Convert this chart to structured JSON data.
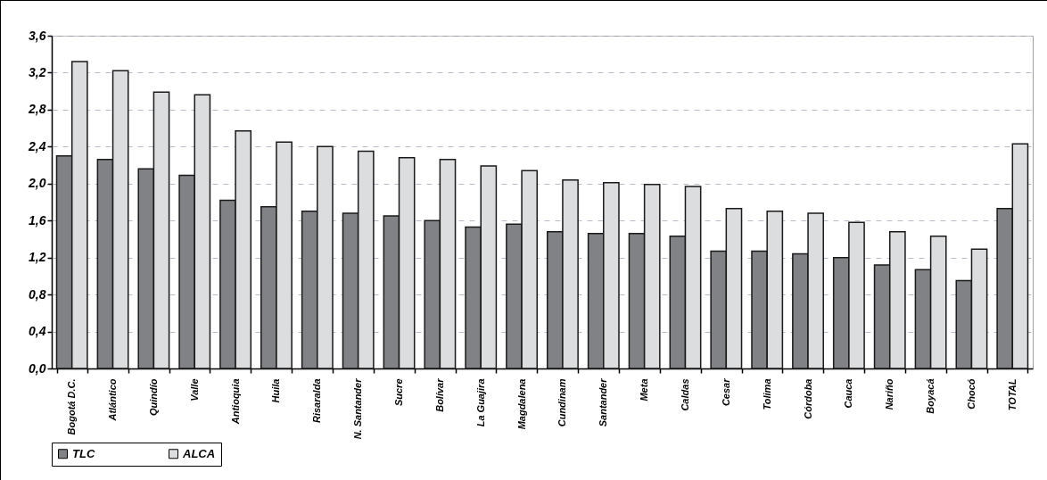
{
  "chart_data": {
    "type": "bar",
    "categories": [
      "Bogotá D.C.",
      "Atlántico",
      "Quindío",
      "Valle",
      "Antioquia",
      "Huila",
      "Risaralda",
      "N. Santander",
      "Sucre",
      "Bolívar",
      "La Guajira",
      "Magdalena",
      "Cundinam",
      "Santander",
      "Meta",
      "Caldas",
      "Cesar",
      "Tolima",
      "Córdoba",
      "Cauca",
      "Nariño",
      "Boyacá",
      "Chocó",
      "TOTAL"
    ],
    "series": [
      {
        "name": "TLC",
        "color": "#808285",
        "values": [
          2.3,
          2.26,
          2.16,
          2.09,
          1.82,
          1.75,
          1.7,
          1.68,
          1.65,
          1.6,
          1.53,
          1.56,
          1.48,
          1.46,
          1.46,
          1.43,
          1.27,
          1.27,
          1.24,
          1.2,
          1.12,
          1.07,
          0.95,
          1.73
        ]
      },
      {
        "name": "ALCA",
        "color": "#dcdddf",
        "values": [
          3.32,
          3.22,
          2.99,
          2.96,
          2.57,
          2.45,
          2.4,
          2.35,
          2.28,
          2.26,
          2.19,
          2.14,
          2.04,
          2.01,
          1.99,
          1.97,
          1.73,
          1.7,
          1.68,
          1.58,
          1.48,
          1.43,
          1.29,
          2.43
        ]
      }
    ],
    "ylim": [
      0,
      3.6
    ],
    "yticks": [
      {
        "value": 0,
        "label": "0,0"
      },
      {
        "value": 0.4,
        "label": "0,4"
      },
      {
        "value": 0.8,
        "label": "0,8"
      },
      {
        "value": 1.2,
        "label": "1,2"
      },
      {
        "value": 1.6,
        "label": "1,6"
      },
      {
        "value": 2.0,
        "label": "2,0"
      },
      {
        "value": 2.4,
        "label": "2,4"
      },
      {
        "value": 2.8,
        "label": "2,8"
      },
      {
        "value": 3.2,
        "label": "3,2"
      },
      {
        "value": 3.6,
        "label": "3,6"
      }
    ],
    "grid": "y",
    "legend": "bottom"
  }
}
